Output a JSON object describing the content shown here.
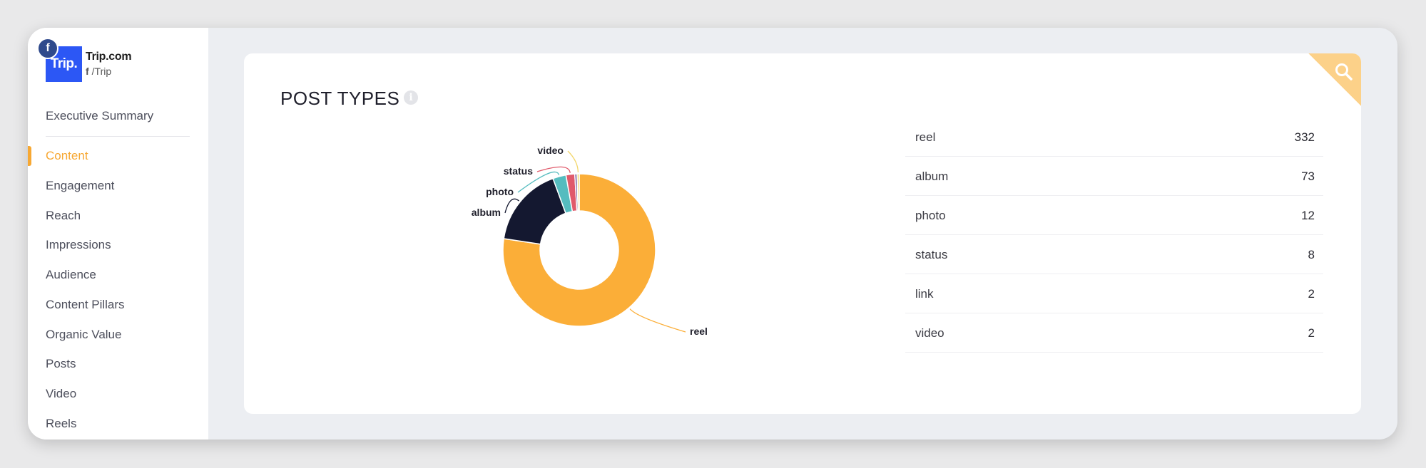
{
  "brand": {
    "name": "Trip.com",
    "logo_text": "Trip.",
    "handle": "/Trip",
    "fb_badge": "f",
    "handle_icon": "f"
  },
  "nav": {
    "items": [
      {
        "label": "Executive Summary",
        "active": false
      },
      {
        "label": "Content",
        "active": true
      },
      {
        "label": "Engagement",
        "active": false
      },
      {
        "label": "Reach",
        "active": false
      },
      {
        "label": "Impressions",
        "active": false
      },
      {
        "label": "Audience",
        "active": false
      },
      {
        "label": "Content Pillars",
        "active": false
      },
      {
        "label": "Organic Value",
        "active": false
      },
      {
        "label": "Posts",
        "active": false
      },
      {
        "label": "Video",
        "active": false
      },
      {
        "label": "Reels",
        "active": false
      }
    ]
  },
  "card": {
    "title": "POST TYPES",
    "info_icon": "i"
  },
  "table": {
    "rows": [
      {
        "label": "reel",
        "value": "332"
      },
      {
        "label": "album",
        "value": "73"
      },
      {
        "label": "photo",
        "value": "12"
      },
      {
        "label": "status",
        "value": "8"
      },
      {
        "label": "link",
        "value": "2"
      },
      {
        "label": "video",
        "value": "2"
      }
    ]
  },
  "chart_data": {
    "type": "pie",
    "subtype": "donut",
    "categories": [
      "reel",
      "album",
      "photo",
      "status",
      "link",
      "video"
    ],
    "values": [
      332,
      73,
      12,
      8,
      2,
      2
    ],
    "labels_shown": [
      "reel",
      "album",
      "photo",
      "status",
      "video"
    ],
    "colors": [
      "#fbae38",
      "#141830",
      "#55bcbf",
      "#e05a6b",
      "#5c3f8c",
      "#f3d76a"
    ]
  },
  "colors": {
    "accent": "#f7a833",
    "brand_blue": "#2c57f5",
    "page_bg": "#eceef2"
  }
}
